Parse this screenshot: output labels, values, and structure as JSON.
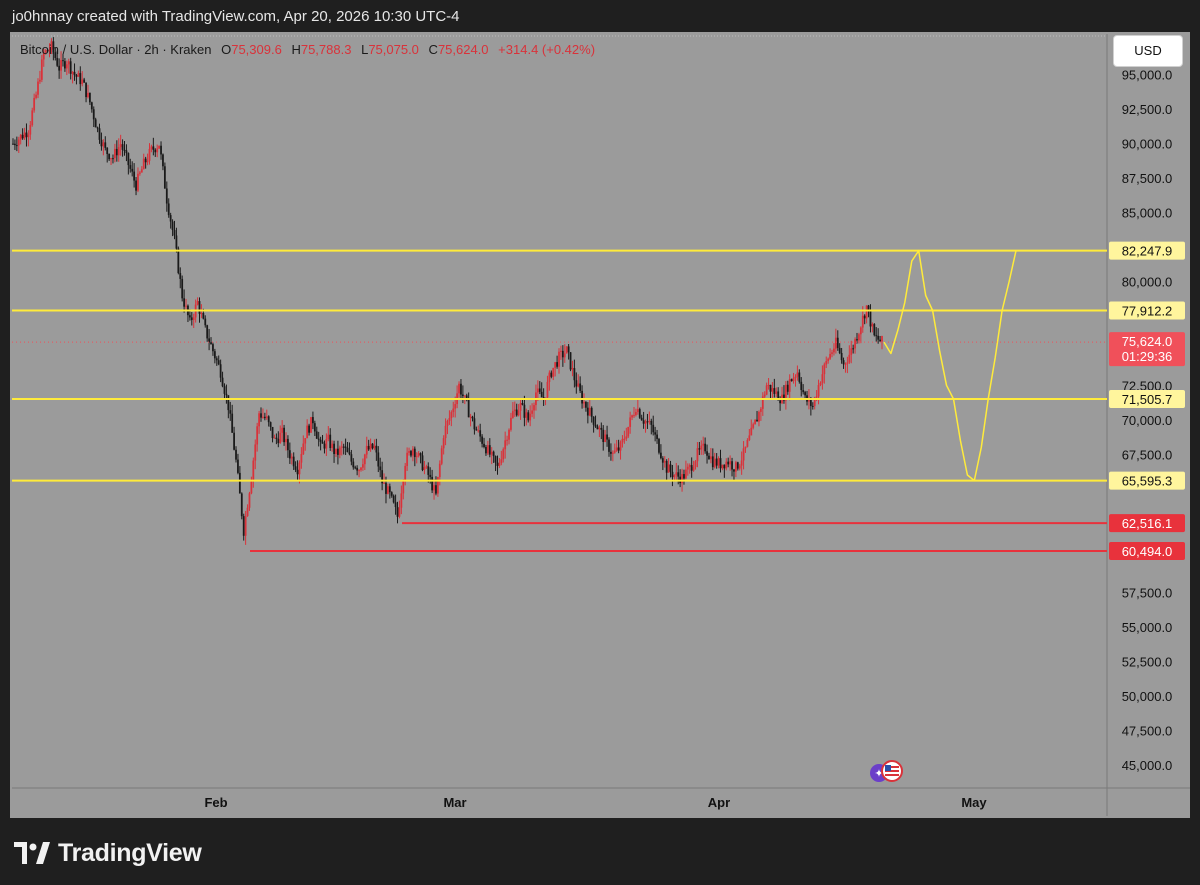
{
  "header": {
    "credit": "jo0hnnay created with TradingView.com, Apr 20, 2026 10:30 UTC-4"
  },
  "legend": {
    "symbol": "Bitcoin / U.S. Dollar · 2h · Kraken",
    "open_label": "O",
    "open": "75,309.6",
    "high_label": "H",
    "high": "75,788.3",
    "low_label": "L",
    "low": "75,075.0",
    "close_label": "C",
    "close": "75,624.0",
    "change": "+314.4 (+0.42%)"
  },
  "currency_button": "USD",
  "footer": {
    "brand": "TradingView"
  },
  "colors": {
    "background": "#1f1f1f",
    "chart_bg": "#9b9b9b",
    "up_candle": "#d9323a",
    "down_candle": "#1a1a1a",
    "yellow_level": "#ffeb3b",
    "red_level": "#e8323c",
    "last_price": "#f0505a"
  },
  "chart_data": {
    "type": "candlestick",
    "title": "Bitcoin / U.S. Dollar · 2h · Kraken",
    "y_axis": {
      "min": 44000,
      "max": 97500,
      "ticks": [
        "95,000.0",
        "92,500.0",
        "90,000.0",
        "87,500.0",
        "85,000.0",
        "80,000.0",
        "72,500.0",
        "70,000.0",
        "67,500.0",
        "57,500.0",
        "55,000.0",
        "52,500.0",
        "50,000.0",
        "47,500.0",
        "45,000.0"
      ],
      "tick_values": [
        95000,
        92500,
        90000,
        87500,
        85000,
        80000,
        72500,
        70000,
        67500,
        57500,
        55000,
        52500,
        50000,
        47500,
        45000
      ]
    },
    "x_axis": {
      "ticks": [
        "Feb",
        "Mar",
        "Apr",
        "May"
      ]
    },
    "price_path": [
      [
        0,
        90000
      ],
      [
        2,
        90500
      ],
      [
        4,
        91000
      ],
      [
        5,
        93500
      ],
      [
        6,
        96500
      ],
      [
        7,
        97000
      ],
      [
        8,
        95500
      ],
      [
        9,
        96000
      ],
      [
        10,
        95000
      ],
      [
        11,
        94500
      ],
      [
        12,
        93000
      ],
      [
        13,
        91000
      ],
      [
        14,
        89500
      ],
      [
        15,
        89000
      ],
      [
        16,
        90000
      ],
      [
        17,
        88500
      ],
      [
        18,
        87000
      ],
      [
        19,
        88500
      ],
      [
        20,
        89500
      ],
      [
        21,
        90000
      ],
      [
        22,
        86000
      ],
      [
        23,
        83000
      ],
      [
        24,
        79000
      ],
      [
        25,
        77000
      ],
      [
        26,
        78500
      ],
      [
        27,
        76500
      ],
      [
        28,
        75000
      ],
      [
        29,
        73500
      ],
      [
        30,
        71000
      ],
      [
        31,
        67000
      ],
      [
        32,
        62000
      ],
      [
        33,
        66000
      ],
      [
        34,
        70500
      ],
      [
        35,
        70000
      ],
      [
        36,
        68500
      ],
      [
        37,
        69000
      ],
      [
        38,
        67500
      ],
      [
        39,
        66500
      ],
      [
        40,
        69000
      ],
      [
        41,
        70000
      ],
      [
        42,
        68000
      ],
      [
        43,
        68500
      ],
      [
        44,
        67500
      ],
      [
        45,
        68000
      ],
      [
        46,
        67000
      ],
      [
        47,
        66500
      ],
      [
        48,
        67800
      ],
      [
        49,
        68000
      ],
      [
        50,
        65500
      ],
      [
        51,
        64500
      ],
      [
        52,
        63000
      ],
      [
        53,
        67000
      ],
      [
        54,
        68000
      ],
      [
        55,
        67000
      ],
      [
        56,
        66000
      ],
      [
        57,
        64500
      ],
      [
        58,
        69000
      ],
      [
        59,
        70500
      ],
      [
        60,
        72500
      ],
      [
        61,
        71000
      ],
      [
        62,
        69500
      ],
      [
        63,
        68500
      ],
      [
        64,
        67500
      ],
      [
        65,
        66500
      ],
      [
        66,
        68500
      ],
      [
        67,
        70500
      ],
      [
        68,
        71000
      ],
      [
        69,
        70000
      ],
      [
        70,
        72000
      ],
      [
        71,
        71500
      ],
      [
        72,
        73500
      ],
      [
        73,
        74500
      ],
      [
        74,
        75000
      ],
      [
        75,
        73000
      ],
      [
        76,
        71500
      ],
      [
        77,
        70500
      ],
      [
        78,
        69500
      ],
      [
        79,
        68500
      ],
      [
        80,
        67500
      ],
      [
        81,
        68000
      ],
      [
        82,
        69500
      ],
      [
        83,
        71000
      ],
      [
        84,
        70000
      ],
      [
        85,
        69500
      ],
      [
        86,
        68000
      ],
      [
        87,
        66500
      ],
      [
        88,
        66000
      ],
      [
        89,
        65800
      ],
      [
        90,
        66500
      ],
      [
        91,
        67500
      ],
      [
        92,
        68000
      ],
      [
        93,
        67000
      ],
      [
        94,
        66800
      ],
      [
        95,
        67000
      ],
      [
        96,
        66500
      ],
      [
        97,
        67500
      ],
      [
        98,
        69000
      ],
      [
        99,
        70500
      ],
      [
        100,
        72500
      ],
      [
        101,
        72000
      ],
      [
        102,
        71500
      ],
      [
        103,
        72800
      ],
      [
        104,
        73500
      ],
      [
        105,
        71500
      ],
      [
        106,
        71000
      ],
      [
        107,
        73000
      ],
      [
        108,
        74500
      ],
      [
        109,
        75500
      ],
      [
        110,
        74000
      ],
      [
        111,
        75000
      ],
      [
        112,
        76500
      ],
      [
        113,
        78200
      ],
      [
        114,
        76000
      ],
      [
        115,
        75624
      ]
    ],
    "projection": [
      75624,
      74800,
      76500,
      78500,
      81500,
      82247.9,
      79000,
      77912.2,
      75000,
      72500,
      71505.7,
      68500,
      66000,
      65595.3,
      68000,
      71505.7,
      74500,
      77912.2,
      80000,
      82247.9
    ],
    "levels": [
      {
        "value": 82247.9,
        "label": "82,247.9",
        "color": "yellow"
      },
      {
        "value": 77912.2,
        "label": "77,912.2",
        "color": "yellow"
      },
      {
        "value": 71505.7,
        "label": "71,505.7",
        "color": "yellow"
      },
      {
        "value": 65595.3,
        "label": "65,595.3",
        "color": "yellow"
      },
      {
        "value": 62516.1,
        "label": "62,516.1",
        "color": "red"
      },
      {
        "value": 60494.0,
        "label": "60,494.0",
        "color": "red"
      }
    ],
    "last_price": {
      "value": 75624.0,
      "label": "75,624.0",
      "countdown": "01:29:36"
    }
  }
}
